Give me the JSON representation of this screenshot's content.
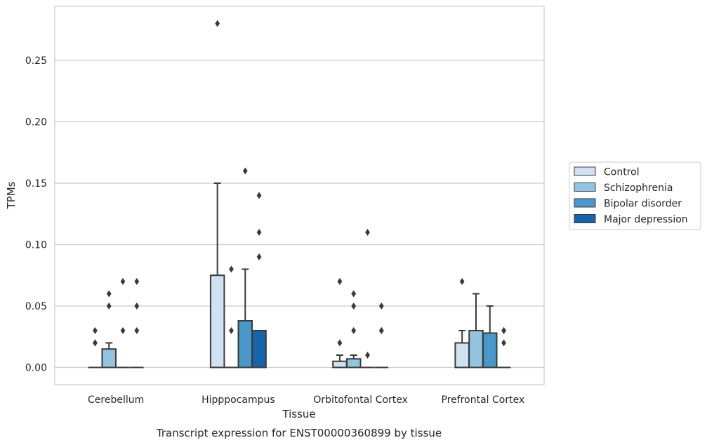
{
  "chart_data": {
    "type": "box",
    "xlabel": "Tissue",
    "ylabel": "TPMs",
    "caption": "Transcript expression for ENST00000360899 by tissue",
    "categories": [
      "Cerebellum",
      "Hipppocampus",
      "Orbitofontal Cortex",
      "Prefrontal Cortex"
    ],
    "ylim": [
      -0.014,
      0.294
    ],
    "yticks": [
      0.0,
      0.05,
      0.1,
      0.15,
      0.2,
      0.25
    ],
    "ytick_labels": [
      "0.00",
      "0.05",
      "0.10",
      "0.15",
      "0.20",
      "0.25"
    ],
    "grid": "horizontal",
    "legend_position": "right",
    "series": [
      {
        "name": "Control",
        "color": "#d0e1f2",
        "boxes": [
          {
            "q1": 0,
            "median": 0,
            "q3": 0,
            "whisker_low": 0,
            "whisker_high": 0,
            "outliers": [
              0.02,
              0.02,
              0.03
            ]
          },
          {
            "q1": 0,
            "median": 0,
            "q3": 0.075,
            "whisker_low": 0,
            "whisker_high": 0.15,
            "outliers": [
              0.28
            ]
          },
          {
            "q1": 0,
            "median": 0,
            "q3": 0.005,
            "whisker_low": 0,
            "whisker_high": 0.01,
            "outliers": [
              0.02,
              0.07
            ]
          },
          {
            "q1": 0,
            "median": 0,
            "q3": 0.02,
            "whisker_low": 0,
            "whisker_high": 0.03,
            "outliers": [
              0.07
            ]
          }
        ]
      },
      {
        "name": "Schizophrenia",
        "color": "#94c4df",
        "boxes": [
          {
            "q1": 0,
            "median": 0,
            "q3": 0.015,
            "whisker_low": 0,
            "whisker_high": 0.02,
            "outliers": [
              0.05,
              0.06
            ]
          },
          {
            "q1": 0,
            "median": 0,
            "q3": 0,
            "whisker_low": 0,
            "whisker_high": 0,
            "outliers": [
              0.03,
              0.08
            ]
          },
          {
            "q1": 0,
            "median": 0,
            "q3": 0.007,
            "whisker_low": 0,
            "whisker_high": 0.01,
            "outliers": [
              0.03,
              0.05,
              0.06
            ]
          },
          {
            "q1": 0,
            "median": 0,
            "q3": 0.03,
            "whisker_low": 0,
            "whisker_high": 0.06,
            "outliers": []
          }
        ]
      },
      {
        "name": "Bipolar disorder",
        "color": "#4a98c9",
        "boxes": [
          {
            "q1": 0,
            "median": 0,
            "q3": 0,
            "whisker_low": 0,
            "whisker_high": 0,
            "outliers": [
              0.03,
              0.07
            ]
          },
          {
            "q1": 0,
            "median": 0,
            "q3": 0.038,
            "whisker_low": 0,
            "whisker_high": 0.08,
            "outliers": [
              0.16
            ]
          },
          {
            "q1": 0,
            "median": 0,
            "q3": 0,
            "whisker_low": 0,
            "whisker_high": 0,
            "outliers": [
              0.01,
              0.11
            ]
          },
          {
            "q1": 0,
            "median": 0,
            "q3": 0.028,
            "whisker_low": 0,
            "whisker_high": 0.05,
            "outliers": []
          }
        ]
      },
      {
        "name": "Major depression",
        "color": "#1764ab",
        "boxes": [
          {
            "q1": 0,
            "median": 0,
            "q3": 0,
            "whisker_low": 0,
            "whisker_high": 0,
            "outliers": [
              0.03,
              0.05,
              0.07
            ]
          },
          {
            "q1": 0,
            "median": 0,
            "q3": 0.03,
            "whisker_low": 0,
            "whisker_high": 0.03,
            "outliers": [
              0.09,
              0.11,
              0.14
            ]
          },
          {
            "q1": 0,
            "median": 0,
            "q3": 0,
            "whisker_low": 0,
            "whisker_high": 0,
            "outliers": [
              0.03,
              0.03,
              0.05
            ]
          },
          {
            "q1": 0,
            "median": 0,
            "q3": 0,
            "whisker_low": 0,
            "whisker_high": 0,
            "outliers": [
              0.02,
              0.03,
              0.03
            ]
          }
        ]
      }
    ]
  }
}
